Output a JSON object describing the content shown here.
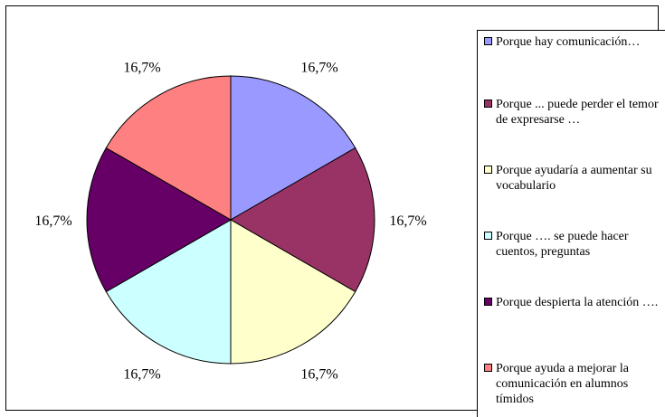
{
  "chart_data": {
    "type": "pie",
    "title": "",
    "categories": [
      "Porque hay comunicación…",
      "Porque ... puede perder el temor de expresarse …",
      "Porque ayudaría a aumentar su vocabulario",
      "Porque …. se puede hacer cuentos, preguntas",
      "Porque despierta la atención ….",
      "Porque ayuda a mejorar la comunicación en alumnos tímidos"
    ],
    "values": [
      16.7,
      16.7,
      16.7,
      16.7,
      16.7,
      16.7
    ],
    "labels": [
      "16,7%",
      "16,7%",
      "16,7%",
      "16,7%",
      "16,7%",
      "16,7%"
    ],
    "colors": [
      "#9999FF",
      "#993366",
      "#FFFFCC",
      "#CCFFFF",
      "#660066",
      "#FF8080"
    ],
    "legend_position": "right"
  }
}
